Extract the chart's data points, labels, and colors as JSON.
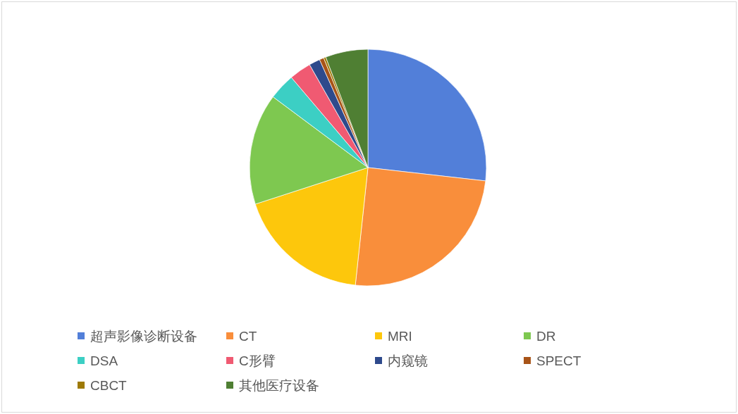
{
  "chart_data": {
    "type": "pie",
    "categories": [
      "超声影像诊断设备",
      "CT",
      "MRI",
      "DR",
      "DSA",
      "C形臂",
      "内窥镜",
      "SPECT",
      "CBCT",
      "其他医疗设备"
    ],
    "values": [
      26.8,
      24.9,
      18.3,
      15.2,
      3.6,
      3.0,
      1.5,
      0.6,
      0.3,
      5.8
    ],
    "colors": [
      "#527fd9",
      "#f98e3b",
      "#fdc70c",
      "#7ec850",
      "#3ccfc4",
      "#f05a72",
      "#2e4a8c",
      "#a85418",
      "#9e7a05",
      "#4f7f33"
    ],
    "legend": "bottom"
  }
}
